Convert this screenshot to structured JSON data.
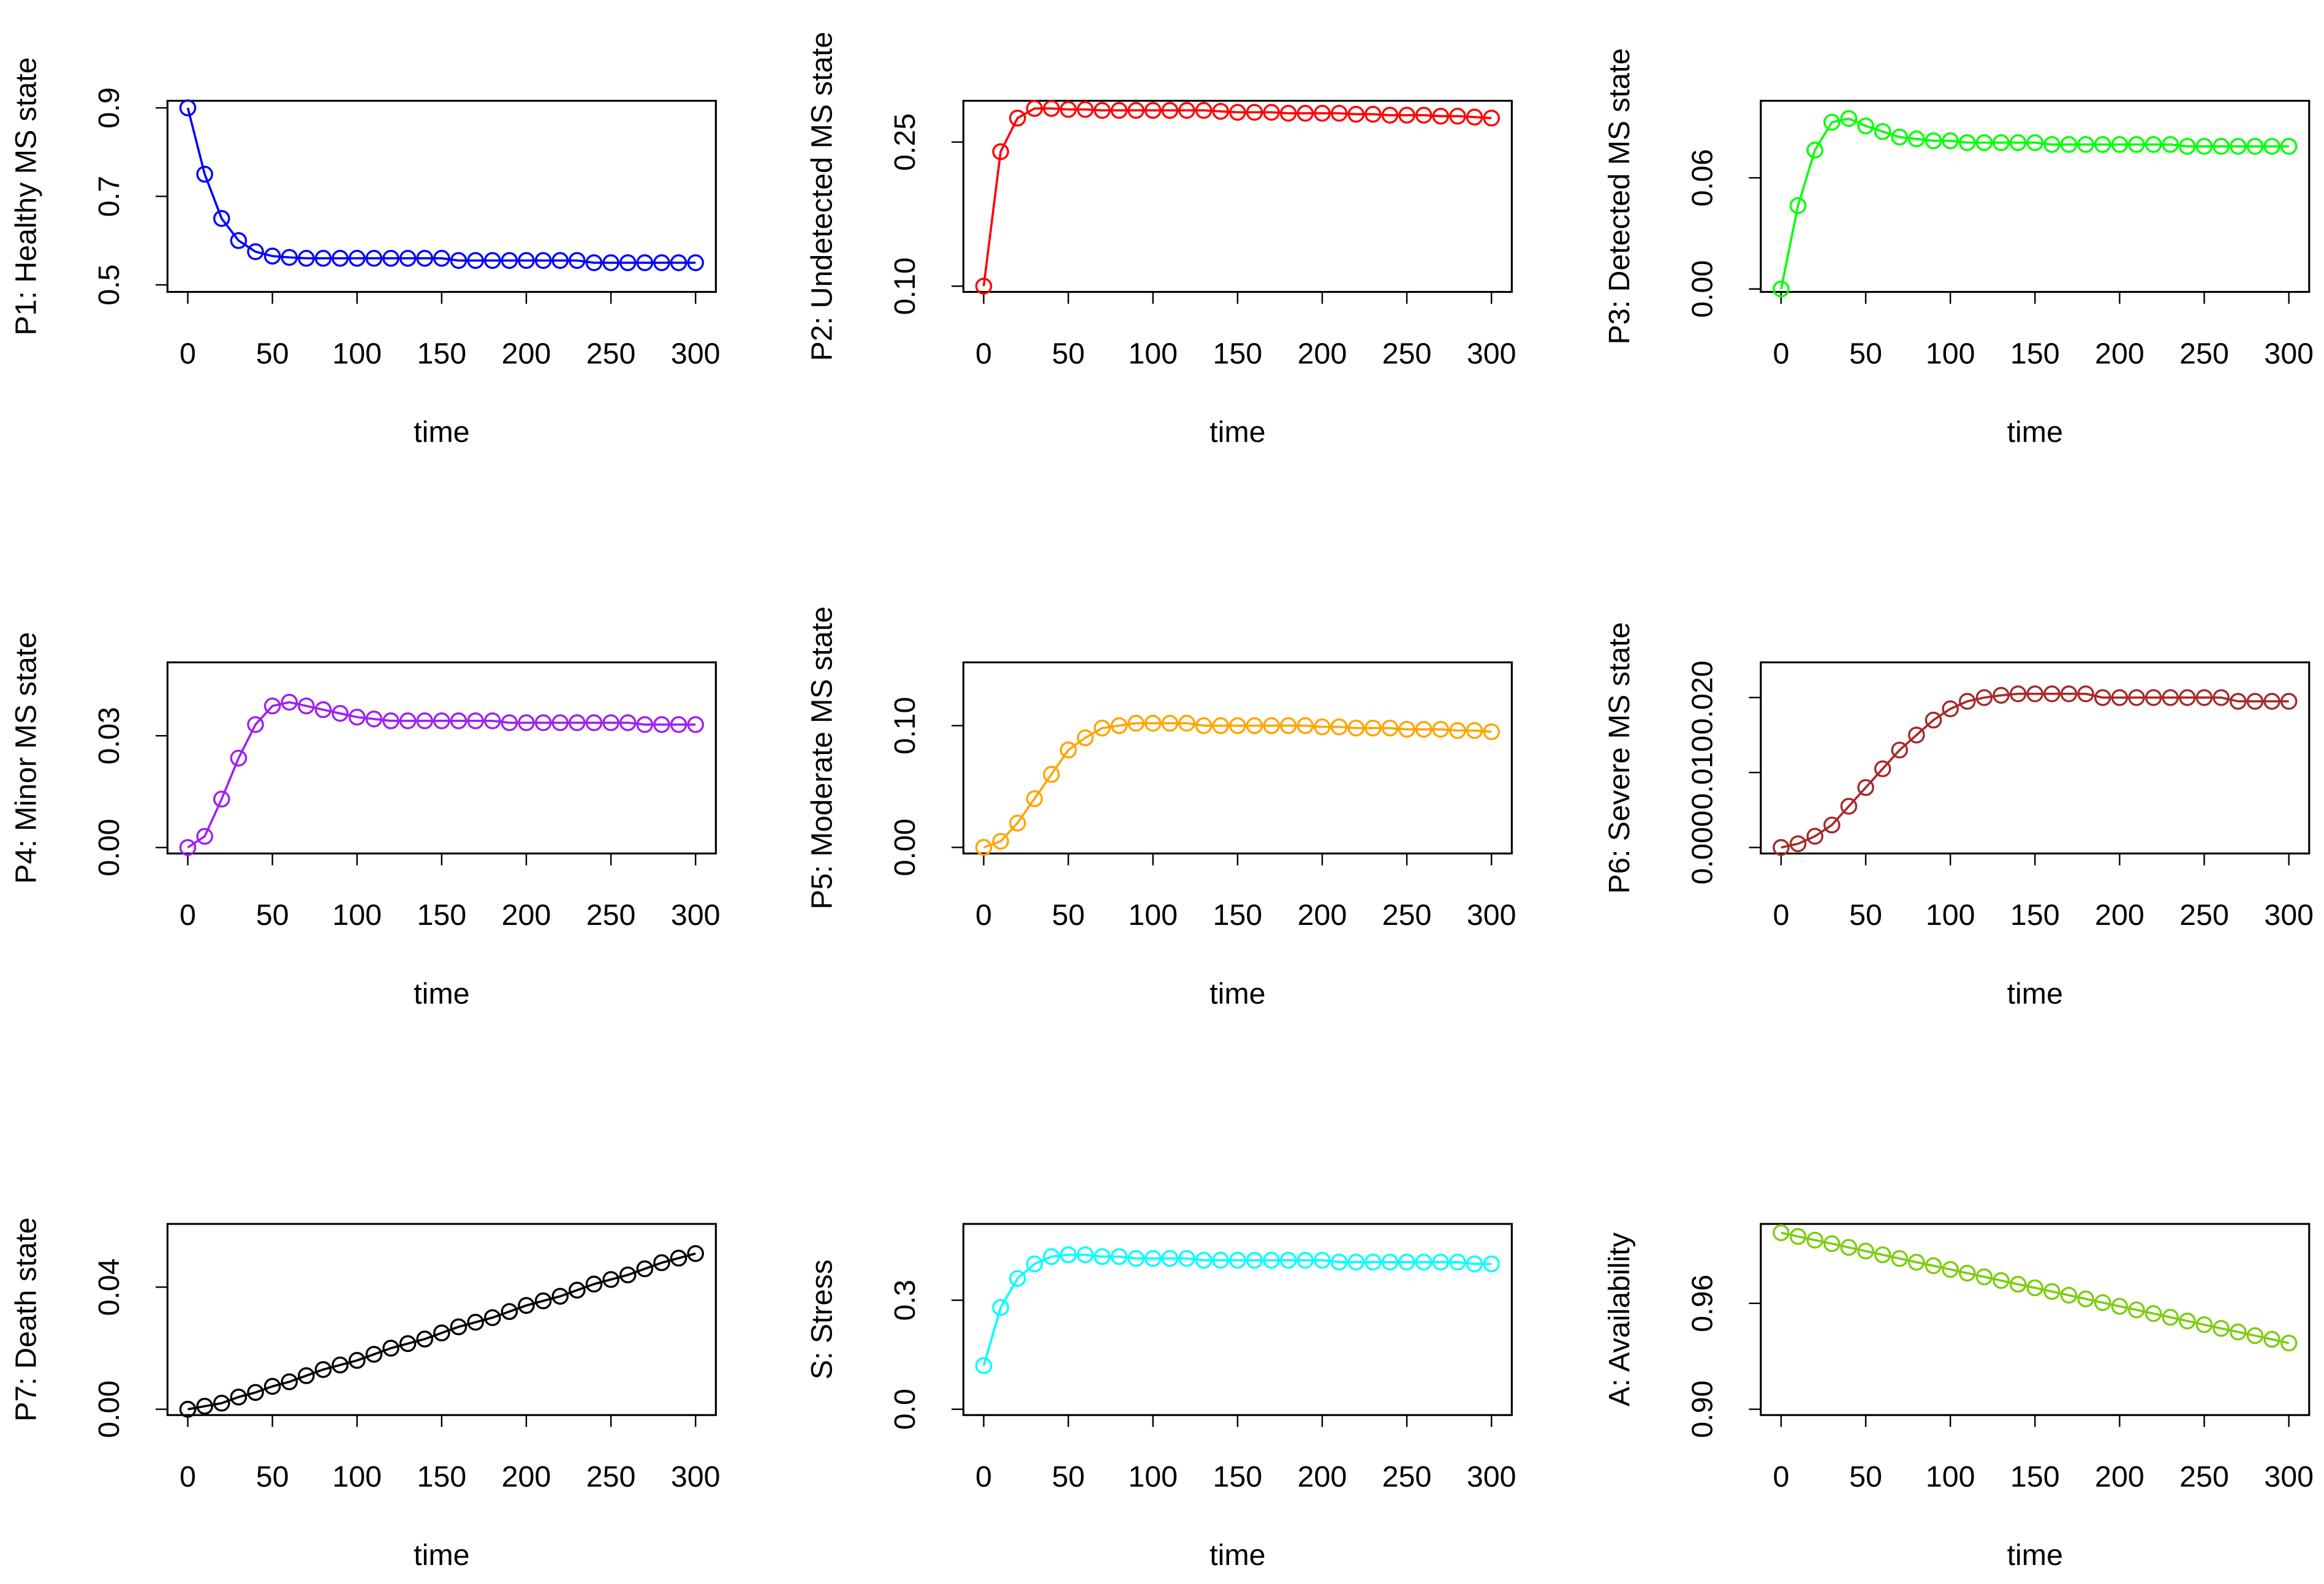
{
  "chart_data": [
    {
      "type": "line",
      "xlabel": "time",
      "ylabel": "P1: Healthy MS state",
      "x": [
        0,
        10,
        20,
        30,
        40,
        50,
        60,
        70,
        80,
        90,
        100,
        110,
        120,
        130,
        140,
        150,
        160,
        170,
        180,
        190,
        200,
        210,
        220,
        230,
        240,
        250,
        260,
        270,
        280,
        290,
        300
      ],
      "series": [
        {
          "color": "#0000ff",
          "values": [
            0.9,
            0.75,
            0.65,
            0.6,
            0.575,
            0.565,
            0.562,
            0.56,
            0.56,
            0.56,
            0.56,
            0.56,
            0.56,
            0.56,
            0.56,
            0.56,
            0.555,
            0.555,
            0.555,
            0.555,
            0.555,
            0.555,
            0.555,
            0.555,
            0.55,
            0.55,
            0.55,
            0.55,
            0.55,
            0.55,
            0.55
          ]
        }
      ],
      "xlim": [
        -12,
        312
      ],
      "xticks": [
        0,
        50,
        100,
        150,
        200,
        250,
        300
      ],
      "ylim": [
        0.484,
        0.916
      ],
      "yticks": [
        0.5,
        0.7,
        0.9
      ]
    },
    {
      "type": "line",
      "xlabel": "time",
      "ylabel": "P2: Undetected MS state",
      "x": [
        0,
        10,
        20,
        30,
        40,
        50,
        60,
        70,
        80,
        90,
        100,
        110,
        120,
        130,
        140,
        150,
        160,
        170,
        180,
        190,
        200,
        210,
        220,
        230,
        240,
        250,
        260,
        270,
        280,
        290,
        300
      ],
      "series": [
        {
          "color": "#ff0000",
          "values": [
            0.1,
            0.24,
            0.275,
            0.285,
            0.285,
            0.284,
            0.284,
            0.283,
            0.283,
            0.283,
            0.283,
            0.283,
            0.283,
            0.283,
            0.282,
            0.281,
            0.281,
            0.281,
            0.28,
            0.28,
            0.28,
            0.28,
            0.279,
            0.279,
            0.278,
            0.278,
            0.278,
            0.277,
            0.277,
            0.276,
            0.275
          ]
        }
      ],
      "xlim": [
        -12,
        312
      ],
      "xticks": [
        0,
        50,
        100,
        150,
        200,
        250,
        300
      ],
      "ylim": [
        0.094,
        0.293
      ],
      "yticks": [
        {
          "value": 0.1,
          "label": "0.10"
        },
        0.25
      ]
    },
    {
      "type": "line",
      "xlabel": "time",
      "ylabel": "P3: Detected MS state",
      "x": [
        0,
        10,
        20,
        30,
        40,
        50,
        60,
        70,
        80,
        90,
        100,
        110,
        120,
        130,
        140,
        150,
        160,
        170,
        180,
        190,
        200,
        210,
        220,
        230,
        240,
        250,
        260,
        270,
        280,
        290,
        300
      ],
      "series": [
        {
          "color": "#00ff00",
          "values": [
            0,
            0.045,
            0.075,
            0.09,
            0.092,
            0.088,
            0.085,
            0.082,
            0.081,
            0.08,
            0.08,
            0.079,
            0.079,
            0.079,
            0.079,
            0.079,
            0.078,
            0.078,
            0.078,
            0.078,
            0.078,
            0.078,
            0.078,
            0.078,
            0.077,
            0.077,
            0.077,
            0.077,
            0.077,
            0.077,
            0.077
          ]
        }
      ],
      "xlim": [
        -12,
        312
      ],
      "xticks": [
        0,
        50,
        100,
        150,
        200,
        250,
        300
      ],
      "ylim": [
        -0.0016,
        0.1016
      ],
      "yticks": [
        {
          "value": 0,
          "label": "0.00"
        },
        0.06
      ]
    },
    {
      "type": "line",
      "xlabel": "time",
      "ylabel": "P4: Minor MS state",
      "x": [
        0,
        10,
        20,
        30,
        40,
        50,
        60,
        70,
        80,
        90,
        100,
        110,
        120,
        130,
        140,
        150,
        160,
        170,
        180,
        190,
        200,
        210,
        220,
        230,
        240,
        250,
        260,
        270,
        280,
        290,
        300
      ],
      "series": [
        {
          "color": "#a020f0",
          "values": [
            0,
            0.003,
            0.013,
            0.024,
            0.033,
            0.038,
            0.039,
            0.038,
            0.037,
            0.036,
            0.035,
            0.0345,
            0.034,
            0.034,
            0.034,
            0.034,
            0.034,
            0.034,
            0.034,
            0.0335,
            0.0335,
            0.0335,
            0.0335,
            0.0335,
            0.0335,
            0.0335,
            0.0335,
            0.033,
            0.033,
            0.033,
            0.033
          ]
        }
      ],
      "xlim": [
        -12,
        312
      ],
      "xticks": [
        0,
        50,
        100,
        150,
        200,
        250,
        300
      ],
      "ylim": [
        -0.0016,
        0.0497
      ],
      "yticks": [
        {
          "value": 0,
          "label": "0.00"
        },
        0.03
      ]
    },
    {
      "type": "line",
      "xlabel": "time",
      "ylabel": "P5: Moderate MS state",
      "x": [
        0,
        10,
        20,
        30,
        40,
        50,
        60,
        70,
        80,
        90,
        100,
        110,
        120,
        130,
        140,
        150,
        160,
        170,
        180,
        190,
        200,
        210,
        220,
        230,
        240,
        250,
        260,
        270,
        280,
        290,
        300
      ],
      "series": [
        {
          "color": "#ffa500",
          "values": [
            0,
            0.005,
            0.02,
            0.04,
            0.06,
            0.08,
            0.09,
            0.098,
            0.1,
            0.102,
            0.102,
            0.102,
            0.102,
            0.1,
            0.1,
            0.1,
            0.1,
            0.1,
            0.1,
            0.1,
            0.099,
            0.099,
            0.098,
            0.098,
            0.098,
            0.097,
            0.097,
            0.097,
            0.096,
            0.096,
            0.095
          ]
        }
      ],
      "xlim": [
        -12,
        312
      ],
      "xticks": [
        0,
        50,
        100,
        150,
        200,
        250,
        300
      ],
      "ylim": [
        -0.005,
        0.152
      ],
      "yticks": [
        {
          "value": 0,
          "label": "0.00"
        },
        {
          "value": 0.1,
          "label": "0.10"
        }
      ]
    },
    {
      "type": "line",
      "xlabel": "time",
      "ylabel": "P6: Severe MS state",
      "x": [
        0,
        10,
        20,
        30,
        40,
        50,
        60,
        70,
        80,
        90,
        100,
        110,
        120,
        130,
        140,
        150,
        160,
        170,
        180,
        190,
        200,
        210,
        220,
        230,
        240,
        250,
        260,
        270,
        280,
        290,
        300
      ],
      "series": [
        {
          "color": "#a52a2a",
          "values": [
            0,
            0.0005,
            0.0015,
            0.003,
            0.0055,
            0.008,
            0.0105,
            0.013,
            0.015,
            0.017,
            0.0185,
            0.0195,
            0.02,
            0.0203,
            0.0205,
            0.0205,
            0.0205,
            0.0205,
            0.0205,
            0.02,
            0.02,
            0.02,
            0.02,
            0.02,
            0.02,
            0.02,
            0.02,
            0.0195,
            0.0195,
            0.0195,
            0.0195
          ]
        }
      ],
      "xlim": [
        -12,
        312
      ],
      "xticks": [
        0,
        50,
        100,
        150,
        200,
        250,
        300
      ],
      "ylim": [
        -0.0008,
        0.0247
      ],
      "yticks": [
        {
          "value": 0,
          "label": "0.000"
        },
        {
          "value": 0.01,
          "label": "0.010"
        },
        {
          "value": 0.02,
          "label": "0.020"
        }
      ]
    },
    {
      "type": "line",
      "xlabel": "time",
      "ylabel": "P7: Death state",
      "x": [
        0,
        10,
        20,
        30,
        40,
        50,
        60,
        70,
        80,
        90,
        100,
        110,
        120,
        130,
        140,
        150,
        160,
        170,
        180,
        190,
        200,
        210,
        220,
        230,
        240,
        250,
        260,
        270,
        280,
        290,
        300
      ],
      "series": [
        {
          "color": "#000000",
          "values": [
            0,
            0.001,
            0.002,
            0.004,
            0.0055,
            0.0075,
            0.009,
            0.011,
            0.013,
            0.0145,
            0.016,
            0.018,
            0.02,
            0.0215,
            0.023,
            0.025,
            0.027,
            0.0285,
            0.03,
            0.032,
            0.034,
            0.0355,
            0.037,
            0.039,
            0.041,
            0.0425,
            0.044,
            0.046,
            0.048,
            0.0495,
            0.051
          ]
        }
      ],
      "xlim": [
        -12,
        312
      ],
      "xticks": [
        0,
        50,
        100,
        150,
        200,
        250,
        300
      ],
      "ylim": [
        -0.0019,
        0.0607
      ],
      "yticks": [
        {
          "value": 0,
          "label": "0.00"
        },
        0.04
      ]
    },
    {
      "type": "line",
      "xlabel": "time",
      "ylabel": "S: Stress",
      "x": [
        0,
        10,
        20,
        30,
        40,
        50,
        60,
        70,
        80,
        90,
        100,
        110,
        120,
        130,
        140,
        150,
        160,
        170,
        180,
        190,
        200,
        210,
        220,
        230,
        240,
        250,
        260,
        270,
        280,
        290,
        300
      ],
      "series": [
        {
          "color": "#00ffff",
          "values": [
            0.12,
            0.28,
            0.36,
            0.4,
            0.42,
            0.425,
            0.425,
            0.42,
            0.42,
            0.415,
            0.415,
            0.415,
            0.415,
            0.41,
            0.41,
            0.41,
            0.41,
            0.41,
            0.41,
            0.41,
            0.41,
            0.405,
            0.405,
            0.405,
            0.405,
            0.405,
            0.405,
            0.405,
            0.405,
            0.4,
            0.4
          ]
        }
      ],
      "xlim": [
        -12,
        312
      ],
      "xticks": [
        0,
        50,
        100,
        150,
        200,
        250,
        300
      ],
      "ylim": [
        -0.016,
        0.51
      ],
      "yticks": [
        {
          "value": 0,
          "label": "0.0"
        },
        0.3
      ]
    },
    {
      "type": "line",
      "xlabel": "time",
      "ylabel": "A: Availability",
      "x": [
        0,
        10,
        20,
        30,
        40,
        50,
        60,
        70,
        80,
        90,
        100,
        110,
        120,
        130,
        140,
        150,
        160,
        170,
        180,
        190,
        200,
        210,
        220,
        230,
        240,
        250,
        260,
        270,
        280,
        290,
        300
      ],
      "series": [
        {
          "color": "#7ccd10",
          "values": [
            1.0,
            0.9979,
            0.9958,
            0.9938,
            0.9917,
            0.9896,
            0.9875,
            0.9854,
            0.9833,
            0.9813,
            0.9792,
            0.9771,
            0.975,
            0.9729,
            0.9708,
            0.9688,
            0.9667,
            0.9646,
            0.9625,
            0.9604,
            0.9583,
            0.9563,
            0.9542,
            0.9521,
            0.95,
            0.9479,
            0.9458,
            0.9438,
            0.9417,
            0.9396,
            0.9375
          ]
        }
      ],
      "xlim": [
        -12,
        312
      ],
      "xticks": [
        0,
        50,
        100,
        150,
        200,
        250,
        300
      ],
      "ylim": [
        0.8967,
        1.005
      ],
      "yticks": [
        {
          "value": 0.9,
          "label": "0.90"
        },
        0.96
      ]
    }
  ]
}
